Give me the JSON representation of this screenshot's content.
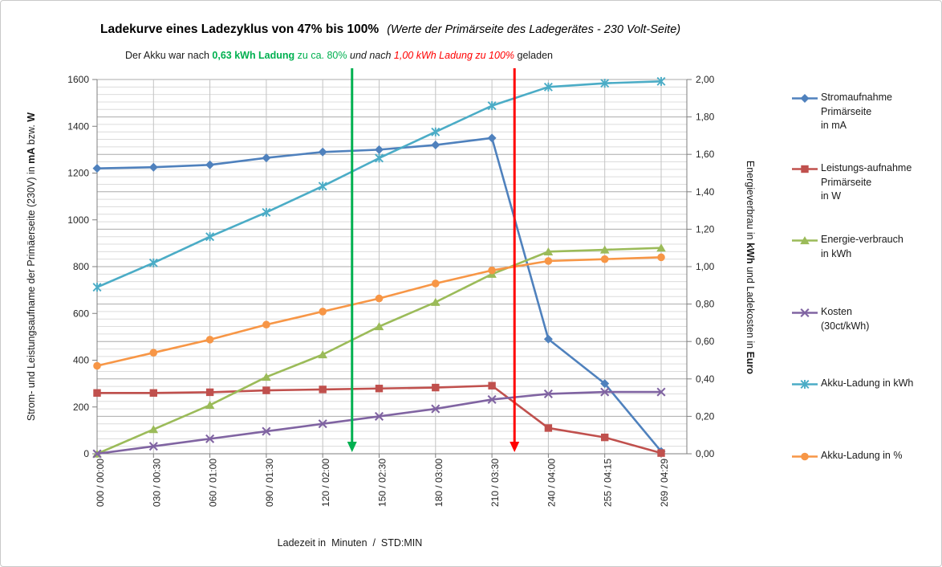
{
  "title": {
    "main": "Ladekurve eines Ladezyklus von 47% bis 100%",
    "sub": "(Werte der Primärseite des Ladegerätes - 230 Volt-Seite)"
  },
  "note": {
    "part1": "Der Akku war nach ",
    "part2": "0,63 kWh Ladung",
    "part3": " zu ca. 80%",
    "part4": "  und nach ",
    "part5": "1,00 kWh Ladung zu 100%",
    "part6": " geladen",
    "green": "#00B050",
    "red": "#FF0000"
  },
  "chart_data": {
    "type": "line",
    "title": "Ladekurve eines Ladezyklus von 47% bis 100%",
    "x_title": "Ladezeit in  Minuten  /  STD:MIN",
    "categories": [
      "000 / 00:00",
      "030 / 00:30",
      "060 / 01:00",
      "090 / 01:30",
      "120 / 02:00",
      "150 / 02:30",
      "180 / 03:00",
      "210 / 03:30",
      "240 / 04:00",
      "255 / 04:15",
      "269 / 04:29"
    ],
    "axes": {
      "left": {
        "min": 0,
        "max": 1600,
        "major": 200,
        "ticks": [
          "0",
          "200",
          "400",
          "600",
          "800",
          "1000",
          "1200",
          "1400",
          "1600"
        ],
        "title_prefix": "Strom-  und Leistungsaufname der Primäerseite (230V) in ",
        "title_bold1": "mA",
        "title_mid": " bzw. ",
        "title_bold2": "W"
      },
      "right": {
        "min": 0,
        "max": 2,
        "major": 0.2,
        "minor": 0.04,
        "ticks": [
          "0,00",
          "0,20",
          "0,40",
          "0,60",
          "0,80",
          "1,00",
          "1,20",
          "1,40",
          "1,60",
          "1,80",
          "2,00"
        ],
        "title_prefix": "Energieverbrau in ",
        "title_bold1": "kWh",
        "title_mid": " und Ladekosten in ",
        "title_bold2": "Euro"
      }
    },
    "series": [
      {
        "id": "stromaufnahme-ma",
        "name": "Stromaufnahme\nPrimärseite\nin mA",
        "axis": "left",
        "color": "#4F81BD",
        "marker": "diamond",
        "values": [
          1220,
          1225,
          1235,
          1265,
          1290,
          1300,
          1320,
          1350,
          490,
          300,
          10
        ]
      },
      {
        "id": "leistungsaufnahme-w",
        "name": "Leistungs-aufnahme\nPrimärseite\nin W",
        "axis": "left",
        "color": "#C0504D",
        "marker": "square",
        "values": [
          260,
          260,
          263,
          271,
          275,
          279,
          283,
          291,
          110,
          70,
          3
        ]
      },
      {
        "id": "energieverbrauch-kwh",
        "name": "Energie-verbrauch\nin kWh",
        "axis": "right",
        "color": "#9BBB59",
        "marker": "triangle",
        "values": [
          0,
          0.13,
          0.26,
          0.41,
          0.53,
          0.68,
          0.81,
          0.96,
          1.08,
          1.09,
          1.1
        ]
      },
      {
        "id": "kosten-euro",
        "name": "Kosten\n(30ct/kWh)",
        "axis": "right",
        "color": "#8064A2",
        "marker": "x",
        "values": [
          0,
          0.04,
          0.08,
          0.12,
          0.16,
          0.2,
          0.24,
          0.29,
          0.32,
          0.33,
          0.33
        ]
      },
      {
        "id": "akku-ladung-kwh",
        "name": "Akku-Ladung in kWh",
        "axis": "right",
        "color": "#4BACC6",
        "marker": "asterisk",
        "values": [
          0.89,
          1.02,
          1.16,
          1.29,
          1.43,
          1.58,
          1.72,
          1.86,
          1.96,
          1.98,
          1.99
        ]
      },
      {
        "id": "akku-ladung-prozent",
        "name": "Akku-Ladung in %",
        "axis": "right",
        "color": "#F79646",
        "marker": "circle",
        "values": [
          0.47,
          0.54,
          0.61,
          0.69,
          0.76,
          0.83,
          0.91,
          0.98,
          1.03,
          1.04,
          1.05
        ]
      }
    ],
    "annotations": [
      {
        "id": "green-arrow",
        "color": "#00B050",
        "x_index": 4.52
      },
      {
        "id": "red-arrow",
        "color": "#FF0000",
        "x_index": 7.4
      }
    ],
    "legend_position": "right",
    "grid": true
  }
}
